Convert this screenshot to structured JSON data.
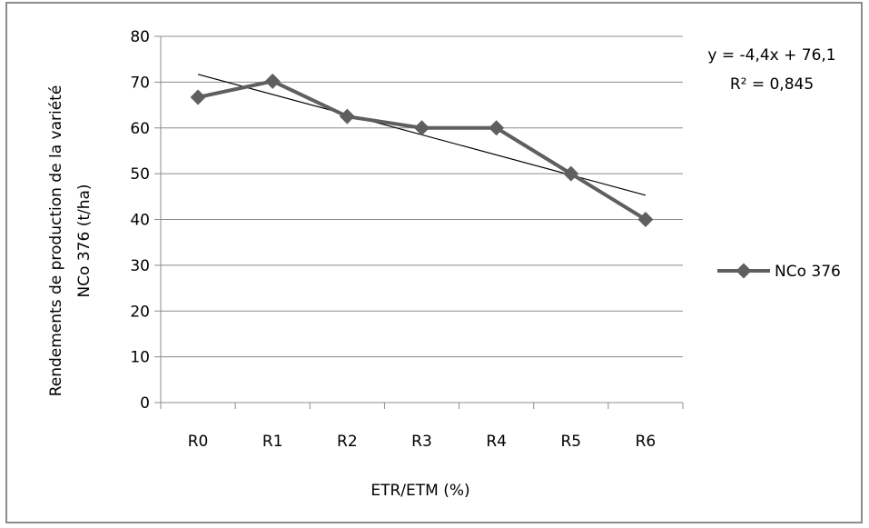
{
  "chart_data": {
    "type": "line",
    "categories": [
      "R0",
      "R1",
      "R2",
      "R3",
      "R4",
      "R5",
      "R6"
    ],
    "series": [
      {
        "name": "NCo 376",
        "values": [
          66.7,
          70.2,
          62.5,
          60,
          60,
          50,
          40
        ],
        "color": "#5f5f5f"
      }
    ],
    "trendline": {
      "slope": -4.4,
      "intercept": 76.1,
      "color": "#000000"
    },
    "equation": "y = -4,4x + 76,1",
    "r2_label": "R² = 0,845",
    "xlabel": "ETR/ETM (%)",
    "ylabel_line1": "Rendements de production de la variété",
    "ylabel_line2": "NCo 376  (t/ha)",
    "ylim": [
      0,
      80
    ],
    "yticks": [
      0,
      10,
      20,
      30,
      40,
      50,
      60,
      70,
      80
    ],
    "grid": true,
    "legend_position": "right"
  }
}
